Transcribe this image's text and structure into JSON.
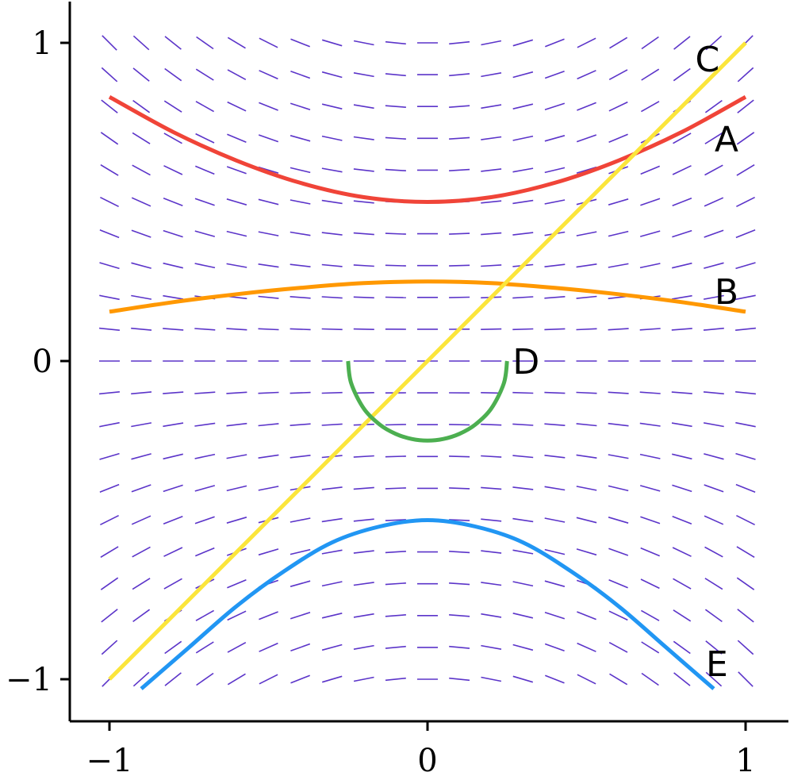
{
  "chart_data": {
    "type": "line",
    "title": "",
    "xlabel": "",
    "ylabel": "",
    "xlim": [
      -1.12,
      1.13
    ],
    "ylim": [
      -1.13,
      1.13
    ],
    "x_ticks": [
      {
        "value": -1,
        "label": "−1"
      },
      {
        "value": 0,
        "label": "0"
      },
      {
        "value": 1,
        "label": "1"
      }
    ],
    "y_ticks": [
      {
        "value": -1,
        "label": "−1"
      },
      {
        "value": 0,
        "label": "0"
      },
      {
        "value": 1,
        "label": "1"
      }
    ],
    "grid": false,
    "slope_field": {
      "x_range": [
        -1,
        1
      ],
      "y_range": [
        -1,
        1
      ],
      "nx": 21,
      "ny": 21,
      "color": "#5b34c9"
    },
    "series": [
      {
        "name": "A",
        "color": "#f04438",
        "x": [
          -1.0,
          -0.8,
          -0.6,
          -0.4,
          -0.2,
          0.0,
          0.2,
          0.4,
          0.6,
          0.8,
          1.0
        ],
        "y": [
          0.83,
          0.72,
          0.63,
          0.56,
          0.515,
          0.5,
          0.515,
          0.56,
          0.63,
          0.72,
          0.83
        ]
      },
      {
        "name": "B",
        "color": "#ff9800",
        "x": [
          -1.0,
          -0.8,
          -0.6,
          -0.4,
          -0.2,
          0.0,
          0.2,
          0.4,
          0.6,
          0.8,
          1.0
        ],
        "y": [
          0.155,
          0.185,
          0.21,
          0.23,
          0.245,
          0.25,
          0.245,
          0.23,
          0.21,
          0.185,
          0.155
        ]
      },
      {
        "name": "C",
        "color": "#fbe53b",
        "x": [
          -1.0,
          1.0
        ],
        "y": [
          -1.0,
          1.0
        ]
      },
      {
        "name": "D",
        "color": "#4caf50",
        "x": [
          -0.25,
          -0.24,
          -0.2,
          -0.15,
          -0.1,
          -0.05,
          0.0,
          0.05,
          0.1,
          0.15,
          0.2,
          0.24,
          0.25
        ],
        "y": [
          0.0,
          -0.07,
          -0.15,
          -0.2,
          -0.229,
          -0.245,
          -0.25,
          -0.245,
          -0.229,
          -0.2,
          -0.15,
          -0.07,
          0.0
        ]
      },
      {
        "name": "E",
        "color": "#2196f3",
        "x": [
          -0.9,
          -0.75,
          -0.6,
          -0.45,
          -0.3,
          -0.15,
          0.0,
          0.15,
          0.3,
          0.45,
          0.6,
          0.75,
          0.9
        ],
        "y": [
          -1.03,
          -0.9,
          -0.77,
          -0.66,
          -0.57,
          -0.52,
          -0.5,
          -0.52,
          -0.57,
          -0.66,
          -0.77,
          -0.9,
          -1.03
        ]
      }
    ],
    "annotations": [
      {
        "text": "A",
        "x": 0.94,
        "y": 0.7
      },
      {
        "text": "B",
        "x": 0.94,
        "y": 0.22
      },
      {
        "text": "C",
        "x": 0.88,
        "y": 0.95
      },
      {
        "text": "D",
        "x": 0.31,
        "y": 0.0
      },
      {
        "text": "E",
        "x": 0.91,
        "y": -0.95
      }
    ]
  }
}
